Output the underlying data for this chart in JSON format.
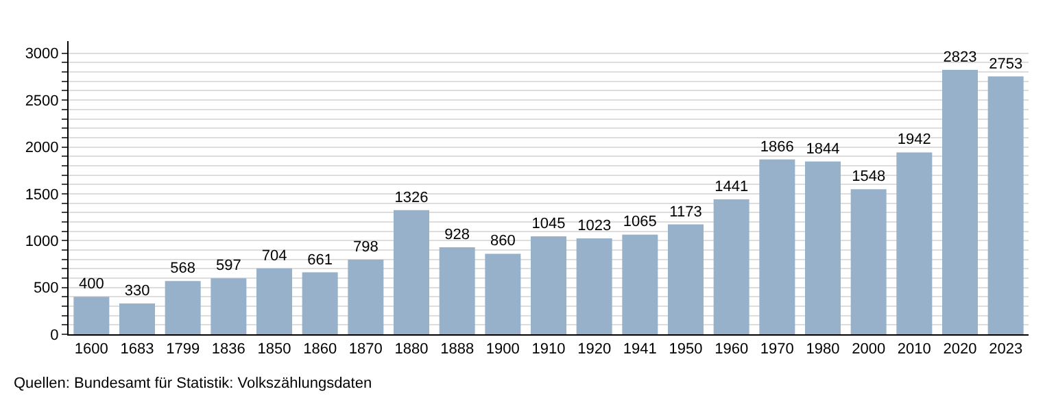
{
  "chart_data": {
    "type": "bar",
    "categories": [
      "1600",
      "1683",
      "1799",
      "1836",
      "1850",
      "1860",
      "1870",
      "1880",
      "1888",
      "1900",
      "1910",
      "1920",
      "1941",
      "1950",
      "1960",
      "1970",
      "1980",
      "2000",
      "2010",
      "2020",
      "2023"
    ],
    "values": [
      400,
      330,
      568,
      597,
      704,
      661,
      798,
      1326,
      928,
      860,
      1045,
      1023,
      1065,
      1173,
      1441,
      1866,
      1844,
      1548,
      1942,
      2823,
      2753
    ],
    "color": "#97b1cb",
    "data_labels": true,
    "grid": "y",
    "legend": false,
    "ylim": [
      0,
      3130
    ],
    "yticks": [
      0,
      {
        "value": 100,
        "label": null
      },
      {
        "value": 200,
        "label": null
      },
      {
        "value": 300,
        "label": null
      },
      {
        "value": 400,
        "label": null
      },
      500,
      {
        "value": 600,
        "label": null
      },
      {
        "value": 700,
        "label": null
      },
      {
        "value": 800,
        "label": null
      },
      {
        "value": 900,
        "label": null
      },
      1000,
      {
        "value": 1100,
        "label": null
      },
      {
        "value": 1200,
        "label": null
      },
      {
        "value": 1300,
        "label": null
      },
      {
        "value": 1400,
        "label": null
      },
      1500,
      {
        "value": 1600,
        "label": null
      },
      {
        "value": 1700,
        "label": null
      },
      {
        "value": 1800,
        "label": null
      },
      {
        "value": 1900,
        "label": null
      },
      2000,
      {
        "value": 2100,
        "label": null
      },
      {
        "value": 2200,
        "label": null
      },
      {
        "value": 2300,
        "label": null
      },
      {
        "value": 2400,
        "label": null
      },
      2500,
      {
        "value": 2600,
        "label": null
      },
      {
        "value": 2700,
        "label": null
      },
      {
        "value": 2800,
        "label": null
      },
      {
        "value": 2900,
        "label": null
      },
      3000
    ],
    "annotations": [
      "Quellen: Bundesamt für Statistik: Volkszählungsdaten"
    ]
  }
}
